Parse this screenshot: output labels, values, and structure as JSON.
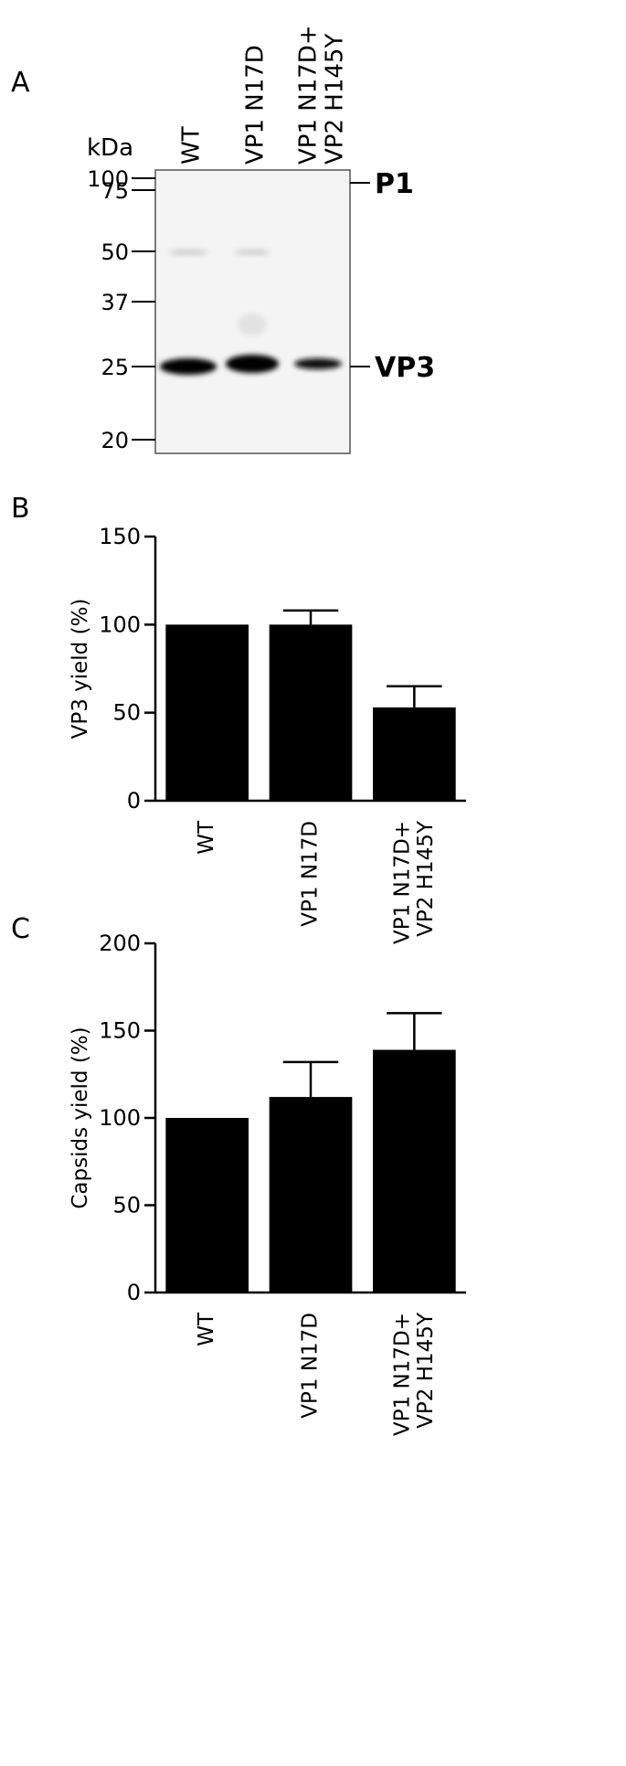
{
  "panels": [
    "A",
    "B",
    "C"
  ],
  "blot": {
    "unit": "kDa",
    "lanes": [
      "WT",
      "VP1 N17D",
      "VP1 N17D+\nVP2 H145Y"
    ],
    "markers": [
      "100",
      "75",
      "50",
      "37",
      "25",
      "20"
    ],
    "bands": [
      "P1",
      "VP3"
    ]
  },
  "chart_data": [
    {
      "type": "bar",
      "ylabel": "VP3 yield (%)",
      "categories": [
        "WT",
        "VP1 N17D",
        "VP1 N17D+\nVP2 H145Y"
      ],
      "values": [
        100,
        100,
        53
      ],
      "errors": [
        null,
        8,
        12
      ],
      "color": "#000000",
      "ylim": [
        0,
        150
      ],
      "yticks": [
        0,
        50,
        100,
        150
      ]
    },
    {
      "type": "bar",
      "ylabel": "Capsids yield (%)",
      "categories": [
        "WT",
        "VP1 N17D",
        "VP1 N17D+\nVP2 H145Y"
      ],
      "values": [
        100,
        112,
        139
      ],
      "errors": [
        null,
        20,
        21
      ],
      "color": "#000000",
      "ylim": [
        0,
        200
      ],
      "yticks": [
        0,
        50,
        100,
        150,
        200
      ]
    }
  ]
}
